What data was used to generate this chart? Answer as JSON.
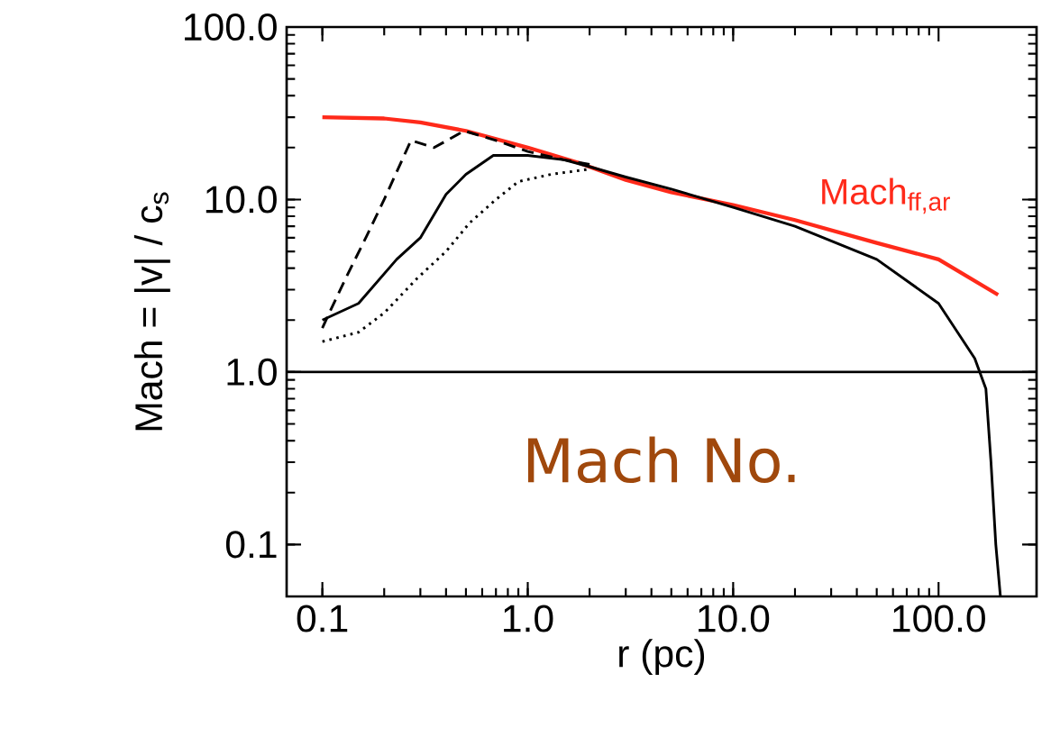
{
  "chart_data": {
    "type": "line",
    "xlabel": "r (pc)",
    "ylabel": "Mach = |v| / c$_{s}$",
    "log": "xy",
    "xlim": [
      0.067,
      300
    ],
    "ylim": [
      0.05,
      100
    ],
    "xticks": [
      0.1,
      {
        "value": 1,
        "label": "1.0"
      },
      {
        "value": 10,
        "label": "10.0"
      },
      {
        "value": 100,
        "label": "100.0"
      }
    ],
    "yticks": [
      0.1,
      {
        "value": 1,
        "label": "1.0"
      },
      {
        "value": 10,
        "label": "10.0"
      },
      {
        "value": 100,
        "label": "100.0"
      }
    ],
    "grid": false,
    "legend": false,
    "marker": "none",
    "ref_lines": [
      {
        "axis": "y",
        "value": 1,
        "color": "#000000",
        "line_style": "solid"
      }
    ],
    "annotations": [
      "Mach No."
    ],
    "series": [
      {
        "name": "Mach$_{ff,ar}$",
        "color": "#ff2a1a",
        "line_style": "solid",
        "x": [
          0.1,
          0.2,
          0.3,
          0.5,
          1,
          1.77,
          3,
          5,
          10,
          20,
          50,
          100,
          195
        ],
        "values": [
          30,
          29.5,
          28,
          25,
          20,
          16.3,
          13,
          11,
          9.3,
          7.6,
          5.6,
          4.5,
          2.8
        ]
      },
      {
        "color": "#000000",
        "line_style": "dashed",
        "x": [
          0.1,
          0.11,
          0.13,
          0.165,
          0.2,
          0.27,
          0.35,
          0.49,
          0.7,
          1,
          1.5,
          2
        ],
        "values": [
          1.8,
          2.3,
          3.5,
          6.2,
          10,
          22,
          20,
          25,
          22,
          19,
          17,
          16
        ]
      },
      {
        "color": "#000000",
        "line_style": "solid",
        "x": [
          0.1,
          0.15,
          0.23,
          0.3,
          0.4,
          0.5,
          0.68,
          1,
          1.5,
          2,
          3,
          5,
          10,
          20,
          50,
          100,
          150,
          170,
          180,
          190,
          200
        ],
        "values": [
          2.0,
          2.5,
          4.5,
          6,
          10.7,
          14,
          18,
          18,
          17,
          15.5,
          13.5,
          11.5,
          9,
          7,
          4.5,
          2.5,
          1.2,
          0.8,
          0.3,
          0.1,
          0.05
        ]
      },
      {
        "color": "#000000",
        "line_style": "dotted",
        "x": [
          0.1,
          0.15,
          0.2,
          0.29,
          0.4,
          0.52,
          0.7,
          0.9,
          1.3,
          2
        ],
        "values": [
          1.5,
          1.7,
          2.2,
          3.5,
          5,
          7.3,
          10,
          12.7,
          14,
          15
        ]
      }
    ]
  }
}
